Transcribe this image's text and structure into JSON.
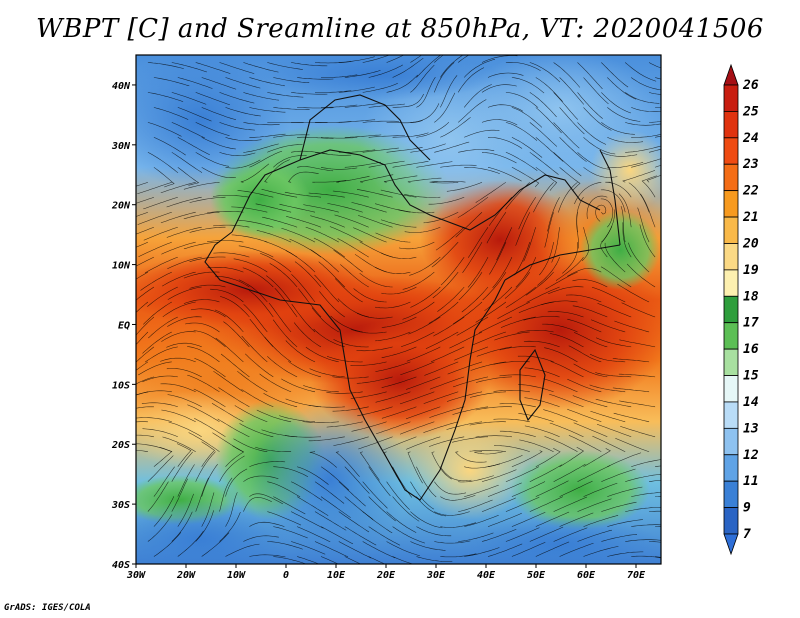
{
  "title": "WBPT [C] and Sreamline at 850hPa, VT: 2020041506",
  "credit": "GrADS: IGES/COLA",
  "map": {
    "lon_range": [
      -30,
      75
    ],
    "lat_range": [
      -40,
      45
    ],
    "lon_ticks": [
      {
        "value": -30,
        "label": "30W"
      },
      {
        "value": -20,
        "label": "20W"
      },
      {
        "value": -10,
        "label": "10W"
      },
      {
        "value": 0,
        "label": "0"
      },
      {
        "value": 10,
        "label": "10E"
      },
      {
        "value": 20,
        "label": "20E"
      },
      {
        "value": 30,
        "label": "30E"
      },
      {
        "value": 40,
        "label": "40E"
      },
      {
        "value": 50,
        "label": "50E"
      },
      {
        "value": 60,
        "label": "60E"
      },
      {
        "value": 70,
        "label": "70E"
      }
    ],
    "lat_ticks": [
      {
        "value": 40,
        "label": "40N"
      },
      {
        "value": 30,
        "label": "30N"
      },
      {
        "value": 20,
        "label": "20N"
      },
      {
        "value": 10,
        "label": "10N"
      },
      {
        "value": 0,
        "label": "EQ"
      },
      {
        "value": -10,
        "label": "10S"
      },
      {
        "value": -20,
        "label": "20S"
      },
      {
        "value": -30,
        "label": "30S"
      },
      {
        "value": -40,
        "label": "40S"
      }
    ]
  },
  "colorbar": {
    "levels": [
      "26",
      "25",
      "24",
      "23",
      "22",
      "21",
      "20",
      "19",
      "18",
      "17",
      "16",
      "15",
      "14",
      "13",
      "12",
      "11",
      "9",
      "7"
    ],
    "colors": [
      "#a50f15",
      "#c81d10",
      "#e0330f",
      "#ef4b12",
      "#f46d16",
      "#f79a1f",
      "#f9b949",
      "#fbd985",
      "#fdf0b0",
      "#2e9e3c",
      "#5cbf55",
      "#a8e0a0",
      "#e6f7f7",
      "#b9dcf7",
      "#8ec2f0",
      "#5fa3e6",
      "#3a80d6",
      "#2a64c4",
      "#2e6fd8"
    ]
  }
}
